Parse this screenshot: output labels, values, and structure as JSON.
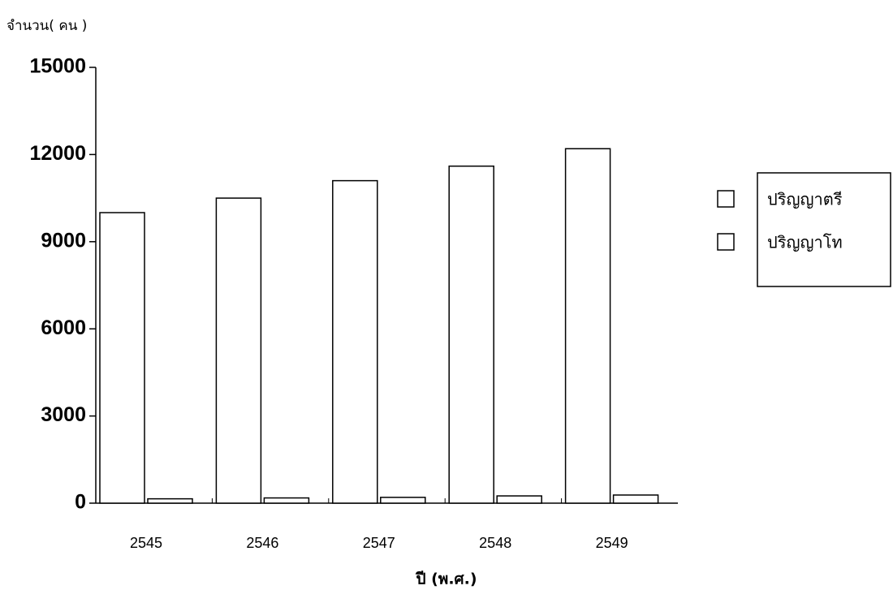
{
  "chart_data": {
    "type": "bar",
    "y_axis_label": "จำนวน( คน )",
    "x_axis_label": "ปี (พ.ศ.)",
    "categories": [
      "2545",
      "2546",
      "2547",
      "2548",
      "2549"
    ],
    "series": [
      {
        "name": "ปริญญาตรี",
        "color": "#ffffff",
        "values": [
          10000,
          10500,
          11100,
          11600,
          12200
        ]
      },
      {
        "name": "ปริญญาโท",
        "color": "#ffffff",
        "values": [
          150,
          180,
          200,
          250,
          280
        ]
      }
    ],
    "ylim": [
      0,
      15000
    ],
    "yticks": [
      0,
      3000,
      6000,
      9000,
      12000,
      15000
    ],
    "grid": false,
    "legend": "right"
  }
}
